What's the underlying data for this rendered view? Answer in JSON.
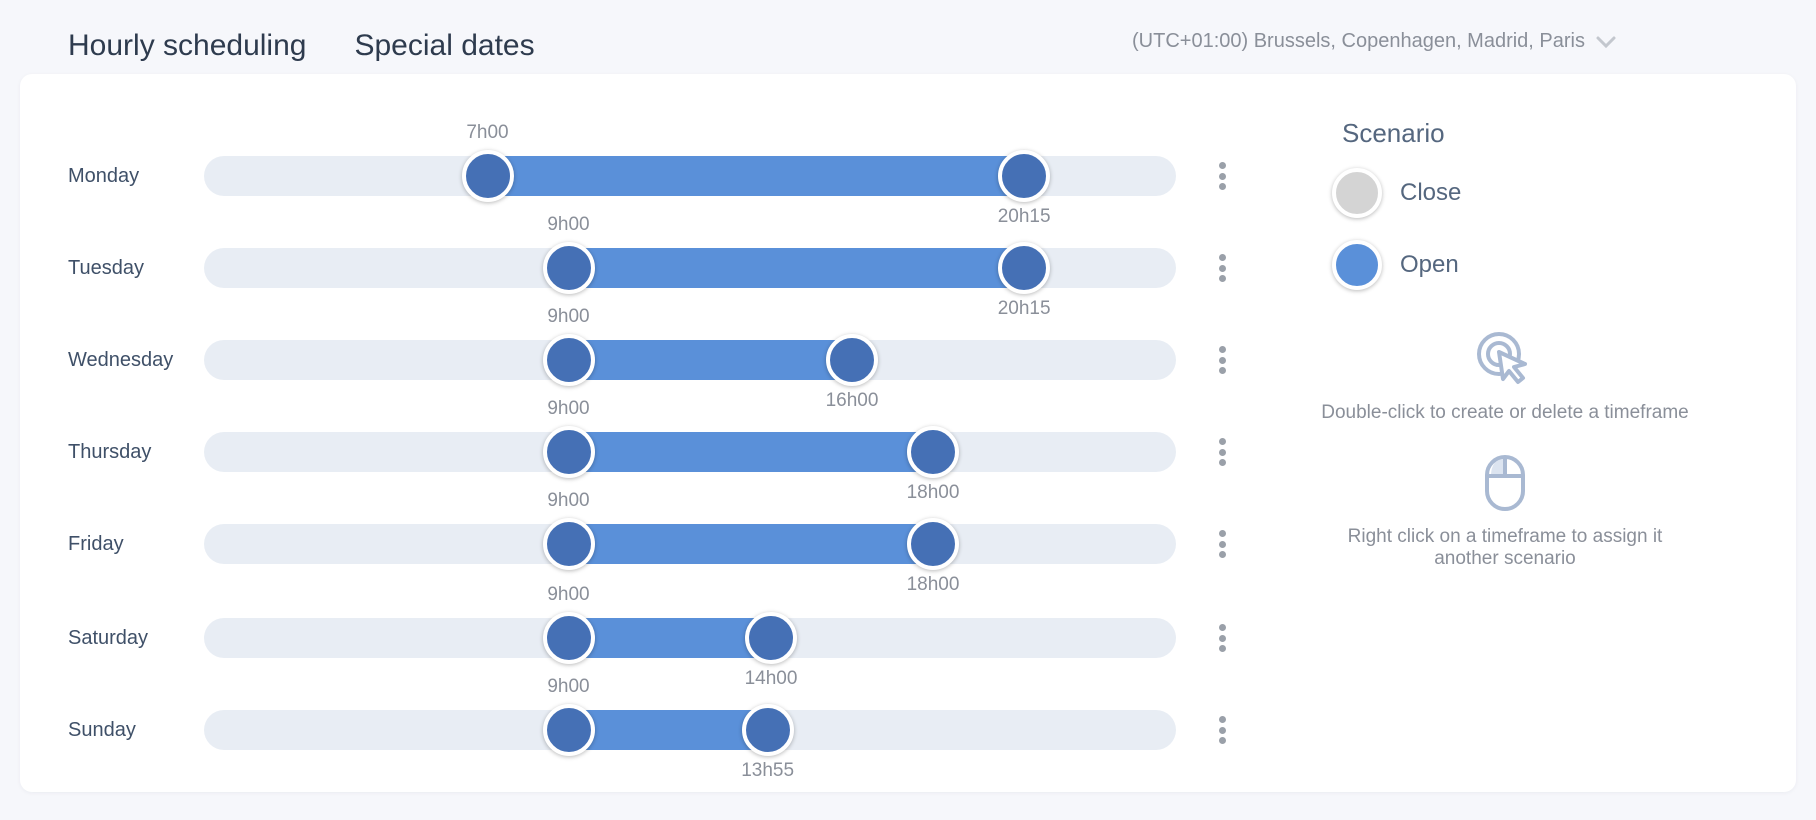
{
  "tabs": [
    {
      "label": "Hourly scheduling",
      "active": true
    },
    {
      "label": "Special dates",
      "active": false
    }
  ],
  "timezone": {
    "label": "(UTC+01:00) Brussels, Copenhagen, Madrid, Paris",
    "icon": "chevron-down-icon"
  },
  "days": [
    {
      "name": "Monday",
      "start": "7h00",
      "end": "20h15",
      "start_minutes": 420,
      "end_minutes": 1215
    },
    {
      "name": "Tuesday",
      "start": "9h00",
      "end": "20h15",
      "start_minutes": 540,
      "end_minutes": 1215
    },
    {
      "name": "Wednesday",
      "start": "9h00",
      "end": "16h00",
      "start_minutes": 540,
      "end_minutes": 960
    },
    {
      "name": "Thursday",
      "start": "9h00",
      "end": "18h00",
      "start_minutes": 540,
      "end_minutes": 1080
    },
    {
      "name": "Friday",
      "start": "9h00",
      "end": "18h00",
      "start_minutes": 540,
      "end_minutes": 1080
    },
    {
      "name": "Saturday",
      "start": "9h00",
      "end": "14h00",
      "start_minutes": 540,
      "end_minutes": 840
    },
    {
      "name": "Sunday",
      "start": "9h00",
      "end": "13h55",
      "start_minutes": 540,
      "end_minutes": 835
    }
  ],
  "scenario": {
    "title": "Scenario",
    "items": [
      {
        "label": "Close",
        "color": "#d4d4d4"
      },
      {
        "label": "Open",
        "color": "#5a90d9"
      }
    ]
  },
  "hints": {
    "double_click": "Double-click to create or delete a timeframe",
    "right_click": "Right click on a timeframe to assign it another scenario"
  },
  "colors": {
    "accent": "#5bc4cc",
    "range_fill": "#5a90d9",
    "handle": "#4570b5",
    "track": "#e8edf4"
  }
}
